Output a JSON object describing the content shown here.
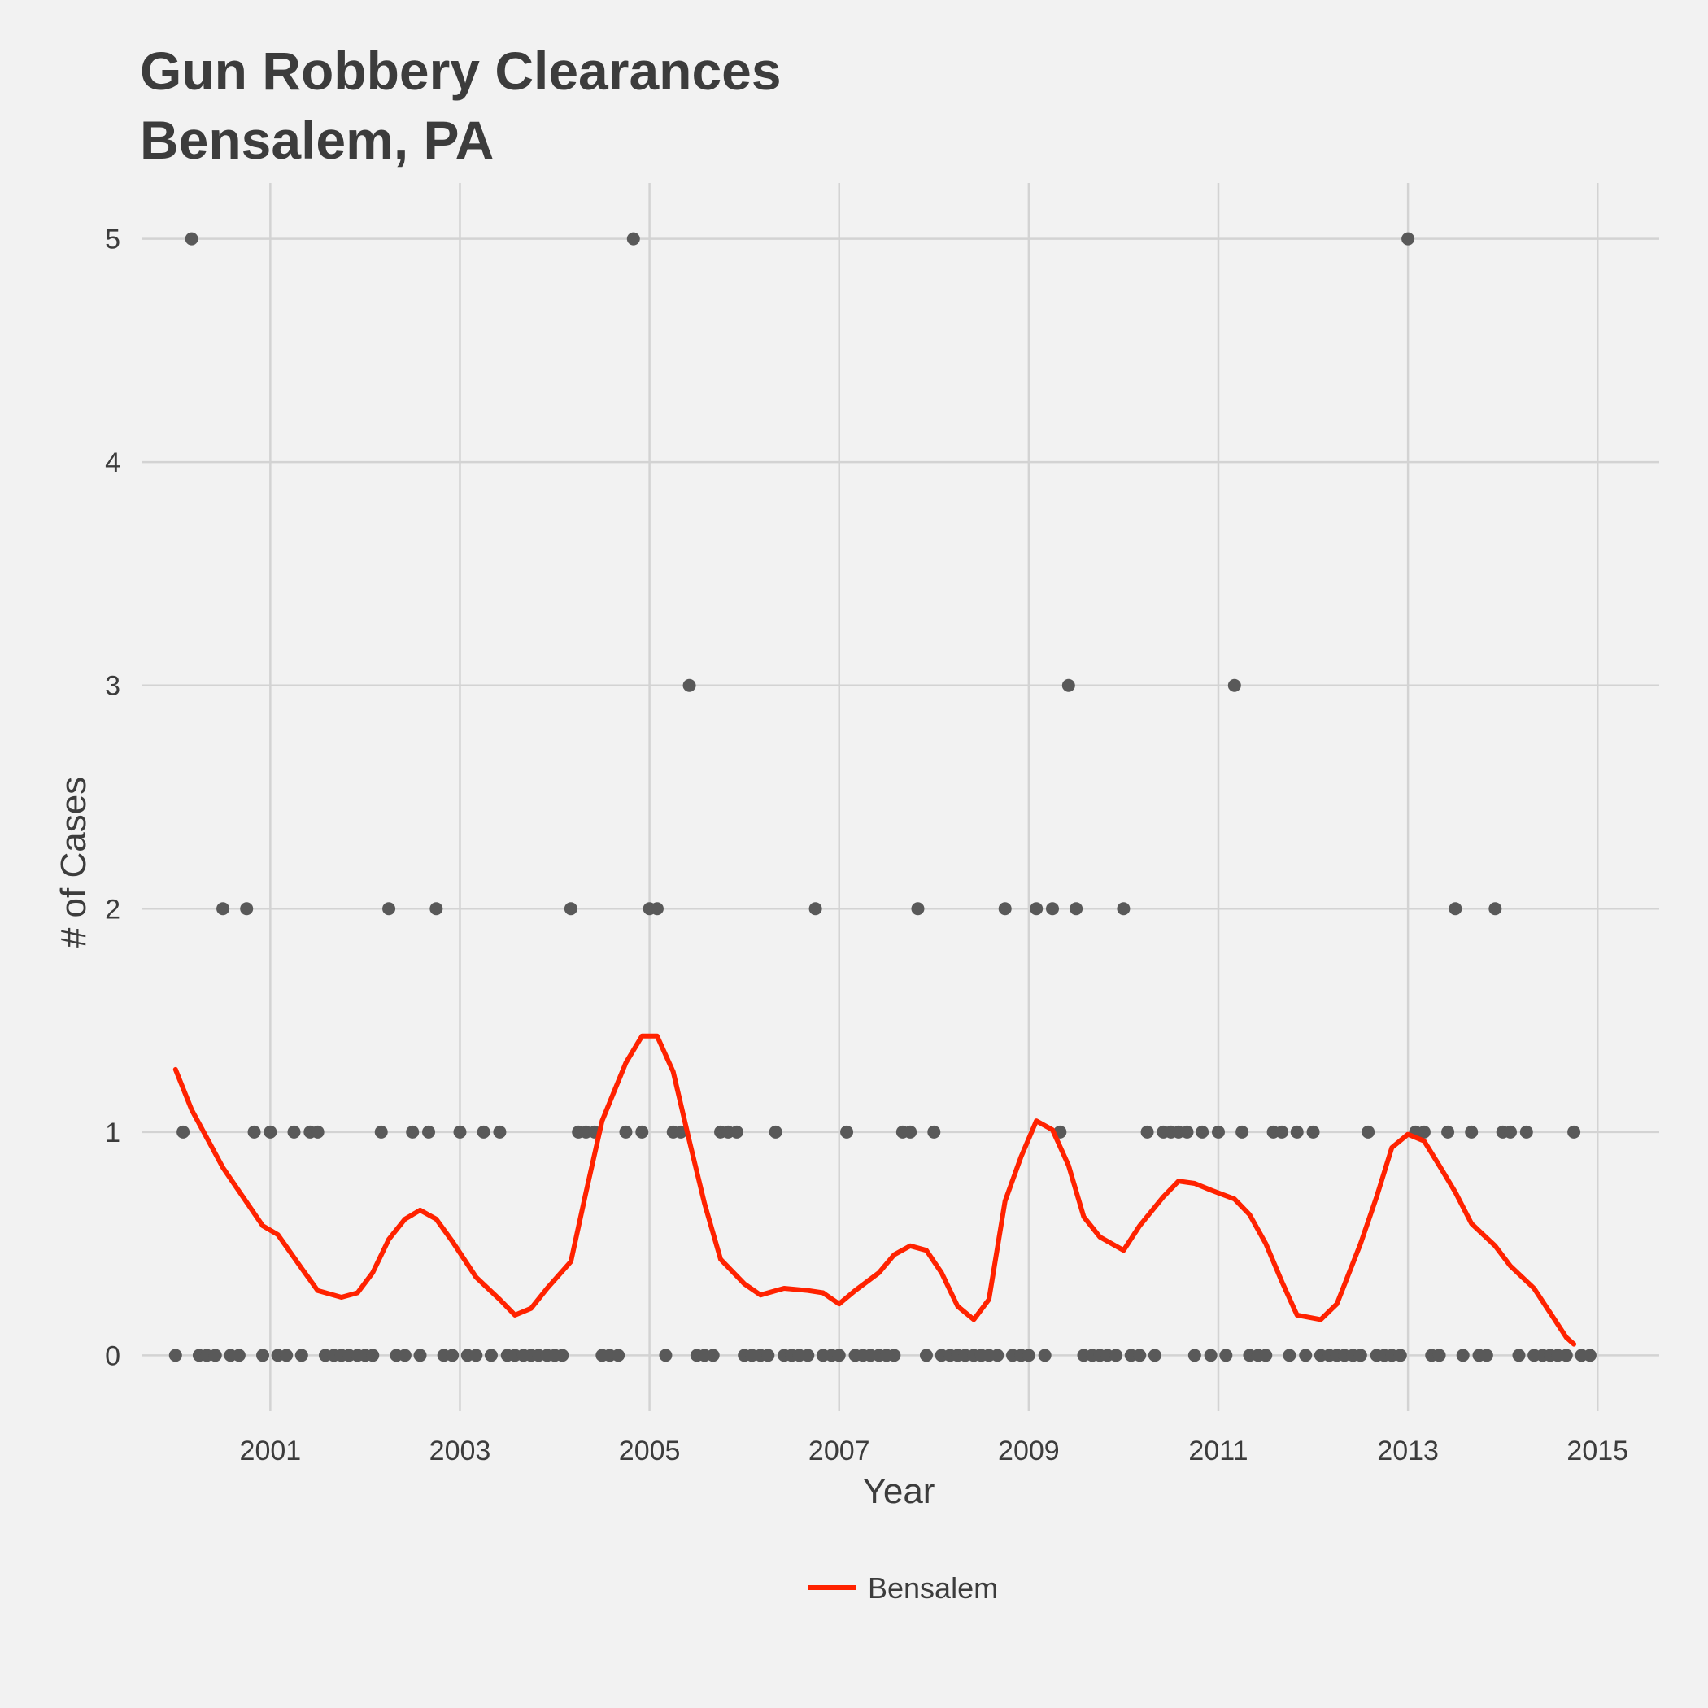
{
  "title_lines": [
    "Gun Robbery Clearances",
    "Bensalem, PA"
  ],
  "chart_data": {
    "type": "scatter",
    "title": "Gun Robbery Clearances\nBensalem, PA",
    "xlabel": "Year",
    "ylabel": "# of Cases",
    "x_ticks": [
      2001,
      2003,
      2005,
      2007,
      2009,
      2011,
      2013,
      2015
    ],
    "y_ticks": [
      0,
      1,
      2,
      3,
      4,
      5
    ],
    "xlim": [
      1999.65,
      2015.65
    ],
    "ylim": [
      -0.25,
      5.25
    ],
    "grid": true,
    "legend_position": "bottom",
    "colors": {
      "points": "#595959",
      "line": "#ff2200",
      "grid": "#d3d3d3",
      "background": "#f2f2f2"
    },
    "series": [
      {
        "type": "scatter",
        "points": [
          [
            2000.0,
            0
          ],
          [
            2000.08,
            1
          ],
          [
            2000.17,
            5
          ],
          [
            2000.25,
            0
          ],
          [
            2000.33,
            0
          ],
          [
            2000.42,
            0
          ],
          [
            2000.5,
            2
          ],
          [
            2000.58,
            0
          ],
          [
            2000.67,
            0
          ],
          [
            2000.75,
            2
          ],
          [
            2000.83,
            1
          ],
          [
            2000.92,
            0
          ],
          [
            2001.0,
            1
          ],
          [
            2001.08,
            0
          ],
          [
            2001.17,
            0
          ],
          [
            2001.25,
            1
          ],
          [
            2001.33,
            0
          ],
          [
            2001.42,
            1
          ],
          [
            2001.5,
            1
          ],
          [
            2001.58,
            0
          ],
          [
            2001.67,
            0
          ],
          [
            2001.75,
            0
          ],
          [
            2001.83,
            0
          ],
          [
            2001.92,
            0
          ],
          [
            2002.0,
            0
          ],
          [
            2002.08,
            0
          ],
          [
            2002.17,
            1
          ],
          [
            2002.25,
            2
          ],
          [
            2002.33,
            0
          ],
          [
            2002.42,
            0
          ],
          [
            2002.5,
            1
          ],
          [
            2002.58,
            0
          ],
          [
            2002.67,
            1
          ],
          [
            2002.75,
            2
          ],
          [
            2002.83,
            0
          ],
          [
            2002.92,
            0
          ],
          [
            2003.0,
            1
          ],
          [
            2003.08,
            0
          ],
          [
            2003.17,
            0
          ],
          [
            2003.25,
            1
          ],
          [
            2003.33,
            0
          ],
          [
            2003.42,
            1
          ],
          [
            2003.5,
            0
          ],
          [
            2003.58,
            0
          ],
          [
            2003.67,
            0
          ],
          [
            2003.75,
            0
          ],
          [
            2003.83,
            0
          ],
          [
            2003.92,
            0
          ],
          [
            2004.0,
            0
          ],
          [
            2004.08,
            0
          ],
          [
            2004.17,
            2
          ],
          [
            2004.25,
            1
          ],
          [
            2004.33,
            1
          ],
          [
            2004.42,
            1
          ],
          [
            2004.5,
            0
          ],
          [
            2004.58,
            0
          ],
          [
            2004.67,
            0
          ],
          [
            2004.75,
            1
          ],
          [
            2004.83,
            5
          ],
          [
            2004.92,
            1
          ],
          [
            2005.0,
            2
          ],
          [
            2005.08,
            2
          ],
          [
            2005.17,
            0
          ],
          [
            2005.25,
            1
          ],
          [
            2005.33,
            1
          ],
          [
            2005.42,
            3
          ],
          [
            2005.5,
            0
          ],
          [
            2005.58,
            0
          ],
          [
            2005.67,
            0
          ],
          [
            2005.75,
            1
          ],
          [
            2005.83,
            1
          ],
          [
            2005.92,
            1
          ],
          [
            2006.0,
            0
          ],
          [
            2006.08,
            0
          ],
          [
            2006.17,
            0
          ],
          [
            2006.25,
            0
          ],
          [
            2006.33,
            1
          ],
          [
            2006.42,
            0
          ],
          [
            2006.5,
            0
          ],
          [
            2006.58,
            0
          ],
          [
            2006.67,
            0
          ],
          [
            2006.75,
            2
          ],
          [
            2006.83,
            0
          ],
          [
            2006.92,
            0
          ],
          [
            2007.0,
            0
          ],
          [
            2007.08,
            1
          ],
          [
            2007.17,
            0
          ],
          [
            2007.25,
            0
          ],
          [
            2007.33,
            0
          ],
          [
            2007.42,
            0
          ],
          [
            2007.5,
            0
          ],
          [
            2007.58,
            0
          ],
          [
            2007.67,
            1
          ],
          [
            2007.75,
            1
          ],
          [
            2007.83,
            2
          ],
          [
            2007.92,
            0
          ],
          [
            2008.0,
            1
          ],
          [
            2008.08,
            0
          ],
          [
            2008.17,
            0
          ],
          [
            2008.25,
            0
          ],
          [
            2008.33,
            0
          ],
          [
            2008.42,
            0
          ],
          [
            2008.5,
            0
          ],
          [
            2008.58,
            0
          ],
          [
            2008.67,
            0
          ],
          [
            2008.75,
            2
          ],
          [
            2008.83,
            0
          ],
          [
            2008.92,
            0
          ],
          [
            2009.0,
            0
          ],
          [
            2009.08,
            2
          ],
          [
            2009.17,
            0
          ],
          [
            2009.25,
            2
          ],
          [
            2009.33,
            1
          ],
          [
            2009.42,
            3
          ],
          [
            2009.5,
            2
          ],
          [
            2009.58,
            0
          ],
          [
            2009.67,
            0
          ],
          [
            2009.75,
            0
          ],
          [
            2009.83,
            0
          ],
          [
            2009.92,
            0
          ],
          [
            2010.0,
            2
          ],
          [
            2010.08,
            0
          ],
          [
            2010.17,
            0
          ],
          [
            2010.25,
            1
          ],
          [
            2010.33,
            0
          ],
          [
            2010.42,
            1
          ],
          [
            2010.5,
            1
          ],
          [
            2010.58,
            1
          ],
          [
            2010.67,
            1
          ],
          [
            2010.75,
            0
          ],
          [
            2010.83,
            1
          ],
          [
            2010.92,
            0
          ],
          [
            2011.0,
            1
          ],
          [
            2011.08,
            0
          ],
          [
            2011.17,
            3
          ],
          [
            2011.25,
            1
          ],
          [
            2011.33,
            0
          ],
          [
            2011.42,
            0
          ],
          [
            2011.5,
            0
          ],
          [
            2011.58,
            1
          ],
          [
            2011.67,
            1
          ],
          [
            2011.75,
            0
          ],
          [
            2011.83,
            1
          ],
          [
            2011.92,
            0
          ],
          [
            2012.0,
            1
          ],
          [
            2012.08,
            0
          ],
          [
            2012.17,
            0
          ],
          [
            2012.25,
            0
          ],
          [
            2012.33,
            0
          ],
          [
            2012.42,
            0
          ],
          [
            2012.5,
            0
          ],
          [
            2012.58,
            1
          ],
          [
            2012.67,
            0
          ],
          [
            2012.75,
            0
          ],
          [
            2012.83,
            0
          ],
          [
            2012.92,
            0
          ],
          [
            2013.0,
            5
          ],
          [
            2013.08,
            1
          ],
          [
            2013.17,
            1
          ],
          [
            2013.25,
            0
          ],
          [
            2013.33,
            0
          ],
          [
            2013.42,
            1
          ],
          [
            2013.5,
            2
          ],
          [
            2013.58,
            0
          ],
          [
            2013.67,
            1
          ],
          [
            2013.75,
            0
          ],
          [
            2013.83,
            0
          ],
          [
            2013.92,
            2
          ],
          [
            2014.0,
            1
          ],
          [
            2014.08,
            1
          ],
          [
            2014.17,
            0
          ],
          [
            2014.25,
            1
          ],
          [
            2014.33,
            0
          ],
          [
            2014.42,
            0
          ],
          [
            2014.5,
            0
          ],
          [
            2014.58,
            0
          ],
          [
            2014.67,
            0
          ],
          [
            2014.75,
            1
          ],
          [
            2014.83,
            0
          ],
          [
            2014.92,
            0
          ]
        ]
      },
      {
        "type": "line",
        "name": "Bensalem",
        "points": [
          [
            2000.0,
            1.28
          ],
          [
            2000.17,
            1.1
          ],
          [
            2000.5,
            0.84
          ],
          [
            2000.92,
            0.58
          ],
          [
            2001.08,
            0.54
          ],
          [
            2001.33,
            0.39
          ],
          [
            2001.5,
            0.29
          ],
          [
            2001.75,
            0.26
          ],
          [
            2001.92,
            0.28
          ],
          [
            2002.08,
            0.37
          ],
          [
            2002.25,
            0.52
          ],
          [
            2002.42,
            0.61
          ],
          [
            2002.58,
            0.65
          ],
          [
            2002.75,
            0.61
          ],
          [
            2002.92,
            0.51
          ],
          [
            2003.17,
            0.35
          ],
          [
            2003.42,
            0.25
          ],
          [
            2003.58,
            0.18
          ],
          [
            2003.75,
            0.21
          ],
          [
            2003.92,
            0.3
          ],
          [
            2004.17,
            0.42
          ],
          [
            2004.33,
            0.73
          ],
          [
            2004.5,
            1.05
          ],
          [
            2004.75,
            1.31
          ],
          [
            2004.92,
            1.43
          ],
          [
            2005.08,
            1.43
          ],
          [
            2005.25,
            1.27
          ],
          [
            2005.42,
            0.96
          ],
          [
            2005.58,
            0.68
          ],
          [
            2005.75,
            0.43
          ],
          [
            2006.0,
            0.32
          ],
          [
            2006.17,
            0.27
          ],
          [
            2006.42,
            0.3
          ],
          [
            2006.67,
            0.29
          ],
          [
            2006.83,
            0.28
          ],
          [
            2007.0,
            0.23
          ],
          [
            2007.17,
            0.29
          ],
          [
            2007.42,
            0.37
          ],
          [
            2007.58,
            0.45
          ],
          [
            2007.75,
            0.49
          ],
          [
            2007.92,
            0.47
          ],
          [
            2008.08,
            0.37
          ],
          [
            2008.25,
            0.22
          ],
          [
            2008.42,
            0.16
          ],
          [
            2008.58,
            0.25
          ],
          [
            2008.75,
            0.69
          ],
          [
            2008.92,
            0.89
          ],
          [
            2009.08,
            1.05
          ],
          [
            2009.25,
            1.01
          ],
          [
            2009.42,
            0.85
          ],
          [
            2009.58,
            0.62
          ],
          [
            2009.75,
            0.53
          ],
          [
            2010.0,
            0.47
          ],
          [
            2010.17,
            0.58
          ],
          [
            2010.42,
            0.71
          ],
          [
            2010.58,
            0.78
          ],
          [
            2010.75,
            0.77
          ],
          [
            2010.92,
            0.74
          ],
          [
            2011.17,
            0.7
          ],
          [
            2011.33,
            0.63
          ],
          [
            2011.5,
            0.5
          ],
          [
            2011.67,
            0.33
          ],
          [
            2011.83,
            0.18
          ],
          [
            2012.08,
            0.16
          ],
          [
            2012.25,
            0.23
          ],
          [
            2012.5,
            0.5
          ],
          [
            2012.67,
            0.71
          ],
          [
            2012.83,
            0.93
          ],
          [
            2013.0,
            0.99
          ],
          [
            2013.17,
            0.96
          ],
          [
            2013.33,
            0.85
          ],
          [
            2013.5,
            0.73
          ],
          [
            2013.67,
            0.59
          ],
          [
            2013.92,
            0.49
          ],
          [
            2014.08,
            0.4
          ],
          [
            2014.33,
            0.3
          ],
          [
            2014.5,
            0.19
          ],
          [
            2014.67,
            0.08
          ],
          [
            2014.75,
            0.05
          ]
        ]
      }
    ]
  }
}
